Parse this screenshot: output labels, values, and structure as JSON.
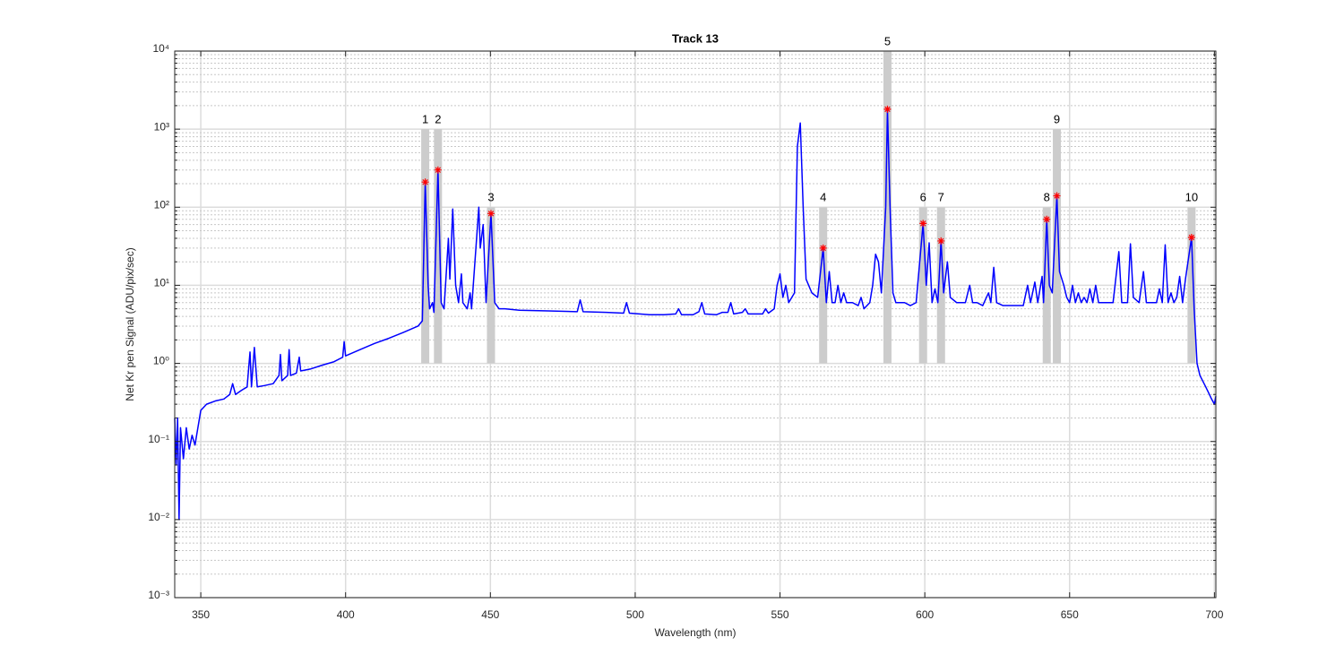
{
  "chart_data": {
    "type": "line",
    "title": "Track 13",
    "xlabel": "Wavelength (nm)",
    "ylabel": "Net Kr pen Signal (ADU/pix/sec)",
    "xlim": [
      341,
      700.5
    ],
    "ylim": [
      0.001,
      10000
    ],
    "yscale": "log",
    "grid": true,
    "minor_grid": true,
    "xticks": [
      350,
      400,
      450,
      500,
      550,
      600,
      650,
      700
    ],
    "yticks": [
      {
        "value": 0.001,
        "label": "10⁻³"
      },
      {
        "value": 0.01,
        "label": "10⁻²"
      },
      {
        "value": 0.1,
        "label": "10⁻¹"
      },
      {
        "value": 1,
        "label": "10⁰"
      },
      {
        "value": 10,
        "label": "10¹"
      },
      {
        "value": 100,
        "label": "10²"
      },
      {
        "value": 1000,
        "label": "10³"
      },
      {
        "value": 10000,
        "label": "10⁴"
      }
    ],
    "series": [
      {
        "color": "#0000ff",
        "x": [
          341.0,
          341.5,
          342,
          342.5,
          343,
          344,
          345,
          346,
          347,
          348,
          349,
          350,
          352,
          355,
          358,
          360,
          361,
          362,
          364,
          366,
          367,
          367.5,
          368.5,
          369.5,
          372,
          375,
          377,
          377.5,
          378,
          380,
          380.5,
          381,
          383,
          384,
          384.5,
          388,
          392,
          396,
          399,
          399.5,
          400,
          405,
          410,
          415,
          420,
          425,
          426.5,
          427.5,
          428.5,
          429,
          430,
          430.5,
          431.9,
          433,
          434,
          435.5,
          436,
          437,
          438,
          439,
          440,
          440.5,
          442,
          443,
          443.5,
          445,
          446,
          446.5,
          447.5,
          448.5,
          450.2,
          451.5,
          453,
          455,
          460,
          470,
          480,
          481,
          482,
          490,
          496,
          497,
          498,
          505,
          510,
          514,
          515,
          516,
          520,
          522,
          523,
          524,
          528,
          530,
          532,
          533,
          534,
          537,
          538,
          539,
          544,
          545,
          546,
          548,
          549,
          550,
          551,
          552,
          553,
          555,
          556,
          557,
          558,
          559,
          561,
          563,
          564.9,
          566,
          567,
          568,
          569,
          570,
          571,
          572,
          573,
          575,
          577,
          578,
          579,
          581,
          582,
          583,
          584,
          585,
          586.5,
          587.1,
          588,
          589,
          590,
          593,
          595,
          597,
          599.4,
          600.5,
          601.5,
          602.5,
          603.5,
          604.5,
          605.6,
          606.5,
          607.8,
          608.8,
          611,
          614,
          615.5,
          616.5,
          618,
          620,
          622,
          622.8,
          623.8,
          624.8,
          627,
          630,
          634,
          635.5,
          636.5,
          638,
          639,
          640.5,
          641,
          642.1,
          643,
          644,
          645.6,
          646.5,
          648,
          649,
          650,
          651,
          652,
          653,
          654,
          655,
          656,
          657,
          658,
          659,
          660,
          662,
          665,
          667,
          668,
          670,
          671,
          672,
          674,
          675.5,
          676.5,
          678,
          680,
          681,
          682,
          683,
          684,
          685,
          686,
          687,
          688,
          689,
          690,
          692.1,
          693,
          694,
          695,
          697,
          698,
          699,
          700,
          700.5
        ],
        "values": [
          0.2,
          0.05,
          0.2,
          0.01,
          0.15,
          0.06,
          0.15,
          0.08,
          0.12,
          0.09,
          0.15,
          0.25,
          0.3,
          0.33,
          0.35,
          0.4,
          0.55,
          0.4,
          0.45,
          0.5,
          1.4,
          0.5,
          1.6,
          0.5,
          0.52,
          0.55,
          0.7,
          1.3,
          0.6,
          0.7,
          1.5,
          0.7,
          0.75,
          1.2,
          0.8,
          0.85,
          0.95,
          1.05,
          1.2,
          1.9,
          1.25,
          1.5,
          1.8,
          2.1,
          2.5,
          3.0,
          3.5,
          210,
          10,
          5,
          6,
          4.5,
          300,
          6,
          5,
          40,
          12,
          95,
          10,
          6,
          14,
          6,
          5,
          8,
          5,
          30,
          100,
          30,
          60,
          6,
          83,
          6,
          5,
          5,
          4.8,
          4.7,
          4.6,
          6.5,
          4.6,
          4.5,
          4.4,
          6,
          4.4,
          4.2,
          4.2,
          4.3,
          5,
          4.2,
          4.2,
          4.6,
          6,
          4.3,
          4.2,
          4.5,
          4.5,
          6,
          4.3,
          4.5,
          5,
          4.3,
          4.3,
          5,
          4.4,
          5,
          10,
          14,
          7,
          10,
          6,
          8,
          600,
          1200,
          100,
          12,
          8,
          7,
          30,
          6,
          15,
          6,
          6,
          10,
          6,
          8,
          6,
          6,
          5.5,
          7,
          5,
          6,
          10,
          25,
          20,
          8,
          100,
          1800,
          100,
          8,
          6,
          6,
          5.5,
          6,
          62,
          10,
          35,
          6,
          9,
          6,
          37,
          8,
          20,
          7,
          6,
          6,
          10,
          6,
          6,
          5.5,
          8,
          6,
          17,
          6,
          5.5,
          5.5,
          5.5,
          10,
          6,
          11,
          6,
          13,
          6,
          70,
          10,
          8,
          140,
          15,
          10,
          7,
          6,
          10,
          6,
          8,
          6,
          7,
          6,
          9,
          6,
          10,
          6,
          6,
          6,
          27,
          6,
          6,
          34,
          7,
          6,
          15,
          6,
          6,
          6,
          9,
          6,
          33,
          6,
          8,
          6,
          7,
          13,
          6,
          12,
          41,
          5,
          1,
          0.7,
          0.5,
          0.42,
          0.35,
          0.3,
          0.38
        ]
      }
    ],
    "peaks": {
      "color": "#ff0000",
      "band_color": "#cccccc",
      "band_bottom": 1,
      "labels": [
        "1",
        "2",
        "3",
        "4",
        "5",
        "6",
        "7",
        "8",
        "9",
        "10"
      ],
      "x": [
        427.5,
        431.9,
        450.2,
        564.9,
        587.1,
        599.4,
        605.6,
        642.1,
        645.6,
        692.1
      ],
      "values": [
        210,
        300,
        83,
        30,
        1800,
        62,
        37,
        70,
        140,
        41
      ],
      "band_top": [
        1000,
        1000,
        100,
        100,
        10000,
        100,
        100,
        100,
        1000,
        100
      ]
    }
  }
}
